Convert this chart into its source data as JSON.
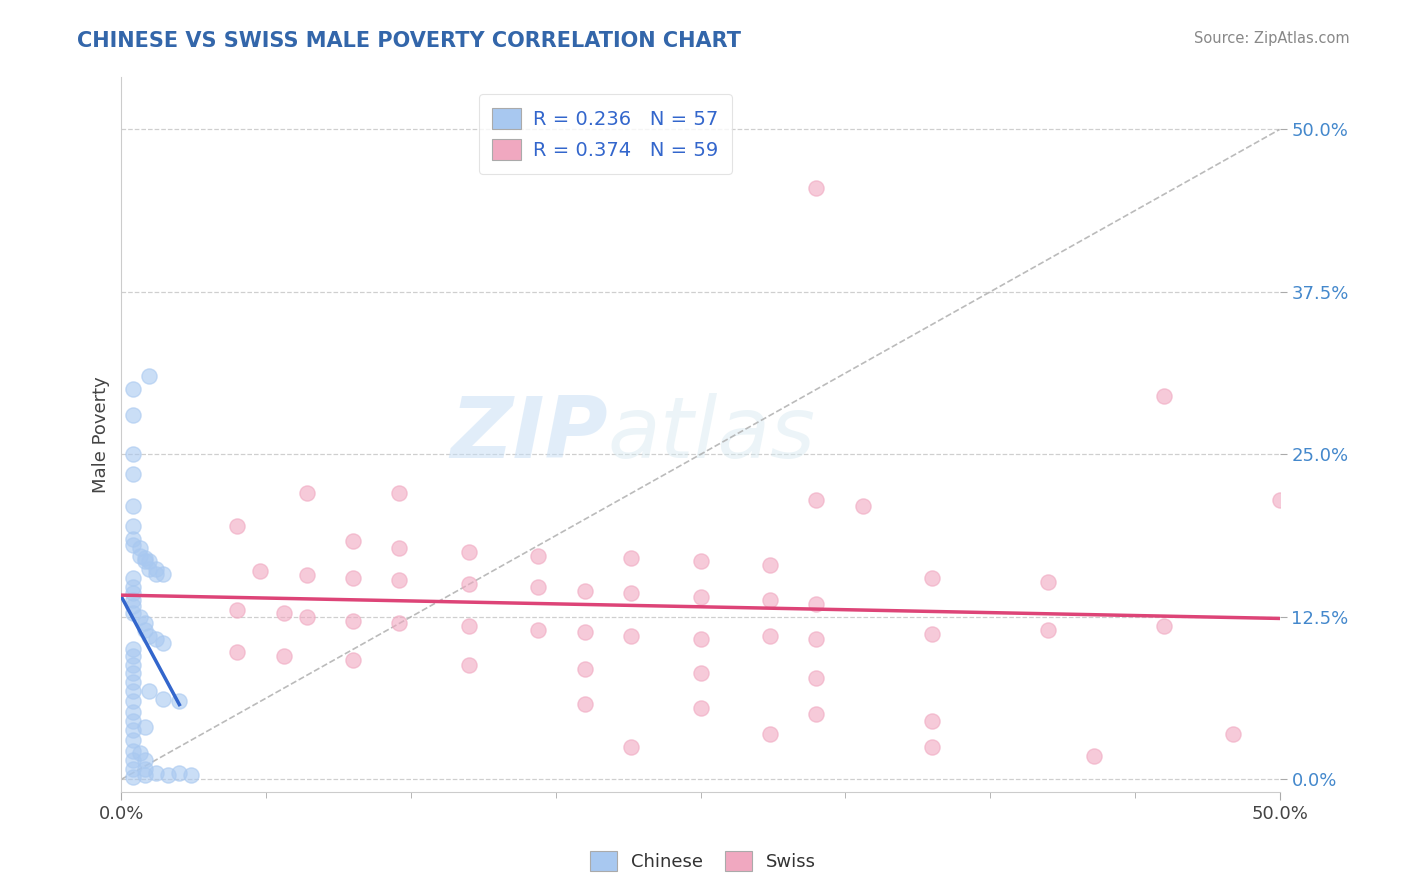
{
  "title": "CHINESE VS SWISS MALE POVERTY CORRELATION CHART",
  "source": "Source: ZipAtlas.com",
  "ylabel": "Male Poverty",
  "ytick_labels": [
    "0.0%",
    "12.5%",
    "25.0%",
    "37.5%",
    "50.0%"
  ],
  "ytick_values": [
    0.0,
    0.125,
    0.25,
    0.375,
    0.5
  ],
  "xlim": [
    0.0,
    0.5
  ],
  "ylim": [
    -0.01,
    0.54
  ],
  "chinese_color": "#a8c8f0",
  "swiss_color": "#f0a8c0",
  "chinese_line_color": "#3366cc",
  "swiss_line_color": "#dd4477",
  "watermark_zip": "ZIP",
  "watermark_atlas": "atlas",
  "chinese_points": [
    [
      0.005,
      0.3
    ],
    [
      0.005,
      0.28
    ],
    [
      0.012,
      0.31
    ],
    [
      0.005,
      0.25
    ],
    [
      0.005,
      0.235
    ],
    [
      0.005,
      0.21
    ],
    [
      0.005,
      0.195
    ],
    [
      0.005,
      0.185
    ],
    [
      0.005,
      0.18
    ],
    [
      0.008,
      0.178
    ],
    [
      0.008,
      0.172
    ],
    [
      0.01,
      0.17
    ],
    [
      0.01,
      0.168
    ],
    [
      0.012,
      0.168
    ],
    [
      0.012,
      0.162
    ],
    [
      0.015,
      0.162
    ],
    [
      0.015,
      0.158
    ],
    [
      0.018,
      0.158
    ],
    [
      0.005,
      0.155
    ],
    [
      0.005,
      0.148
    ],
    [
      0.005,
      0.143
    ],
    [
      0.005,
      0.138
    ],
    [
      0.005,
      0.133
    ],
    [
      0.005,
      0.128
    ],
    [
      0.008,
      0.125
    ],
    [
      0.01,
      0.12
    ],
    [
      0.01,
      0.115
    ],
    [
      0.012,
      0.11
    ],
    [
      0.015,
      0.108
    ],
    [
      0.018,
      0.105
    ],
    [
      0.005,
      0.1
    ],
    [
      0.005,
      0.095
    ],
    [
      0.005,
      0.088
    ],
    [
      0.005,
      0.082
    ],
    [
      0.005,
      0.075
    ],
    [
      0.005,
      0.068
    ],
    [
      0.005,
      0.06
    ],
    [
      0.005,
      0.052
    ],
    [
      0.005,
      0.045
    ],
    [
      0.005,
      0.038
    ],
    [
      0.005,
      0.03
    ],
    [
      0.005,
      0.022
    ],
    [
      0.005,
      0.015
    ],
    [
      0.005,
      0.008
    ],
    [
      0.005,
      0.002
    ],
    [
      0.01,
      0.003
    ],
    [
      0.01,
      0.008
    ],
    [
      0.015,
      0.005
    ],
    [
      0.02,
      0.003
    ],
    [
      0.025,
      0.005
    ],
    [
      0.03,
      0.003
    ],
    [
      0.012,
      0.068
    ],
    [
      0.018,
      0.062
    ],
    [
      0.025,
      0.06
    ],
    [
      0.01,
      0.04
    ],
    [
      0.008,
      0.02
    ],
    [
      0.01,
      0.015
    ]
  ],
  "swiss_points": [
    [
      0.3,
      0.455
    ],
    [
      0.45,
      0.295
    ],
    [
      0.08,
      0.22
    ],
    [
      0.12,
      0.22
    ],
    [
      0.3,
      0.215
    ],
    [
      0.32,
      0.21
    ],
    [
      0.05,
      0.195
    ],
    [
      0.1,
      0.183
    ],
    [
      0.12,
      0.178
    ],
    [
      0.15,
      0.175
    ],
    [
      0.18,
      0.172
    ],
    [
      0.22,
      0.17
    ],
    [
      0.25,
      0.168
    ],
    [
      0.28,
      0.165
    ],
    [
      0.5,
      0.215
    ],
    [
      0.06,
      0.16
    ],
    [
      0.08,
      0.157
    ],
    [
      0.1,
      0.155
    ],
    [
      0.12,
      0.153
    ],
    [
      0.15,
      0.15
    ],
    [
      0.18,
      0.148
    ],
    [
      0.2,
      0.145
    ],
    [
      0.22,
      0.143
    ],
    [
      0.25,
      0.14
    ],
    [
      0.28,
      0.138
    ],
    [
      0.3,
      0.135
    ],
    [
      0.35,
      0.155
    ],
    [
      0.4,
      0.152
    ],
    [
      0.05,
      0.13
    ],
    [
      0.07,
      0.128
    ],
    [
      0.08,
      0.125
    ],
    [
      0.1,
      0.122
    ],
    [
      0.12,
      0.12
    ],
    [
      0.15,
      0.118
    ],
    [
      0.18,
      0.115
    ],
    [
      0.2,
      0.113
    ],
    [
      0.22,
      0.11
    ],
    [
      0.25,
      0.108
    ],
    [
      0.28,
      0.11
    ],
    [
      0.3,
      0.108
    ],
    [
      0.35,
      0.112
    ],
    [
      0.4,
      0.115
    ],
    [
      0.45,
      0.118
    ],
    [
      0.05,
      0.098
    ],
    [
      0.07,
      0.095
    ],
    [
      0.1,
      0.092
    ],
    [
      0.15,
      0.088
    ],
    [
      0.2,
      0.085
    ],
    [
      0.25,
      0.082
    ],
    [
      0.3,
      0.078
    ],
    [
      0.2,
      0.058
    ],
    [
      0.25,
      0.055
    ],
    [
      0.3,
      0.05
    ],
    [
      0.35,
      0.045
    ],
    [
      0.28,
      0.035
    ],
    [
      0.22,
      0.025
    ],
    [
      0.35,
      0.025
    ],
    [
      0.42,
      0.018
    ],
    [
      0.48,
      0.035
    ]
  ]
}
